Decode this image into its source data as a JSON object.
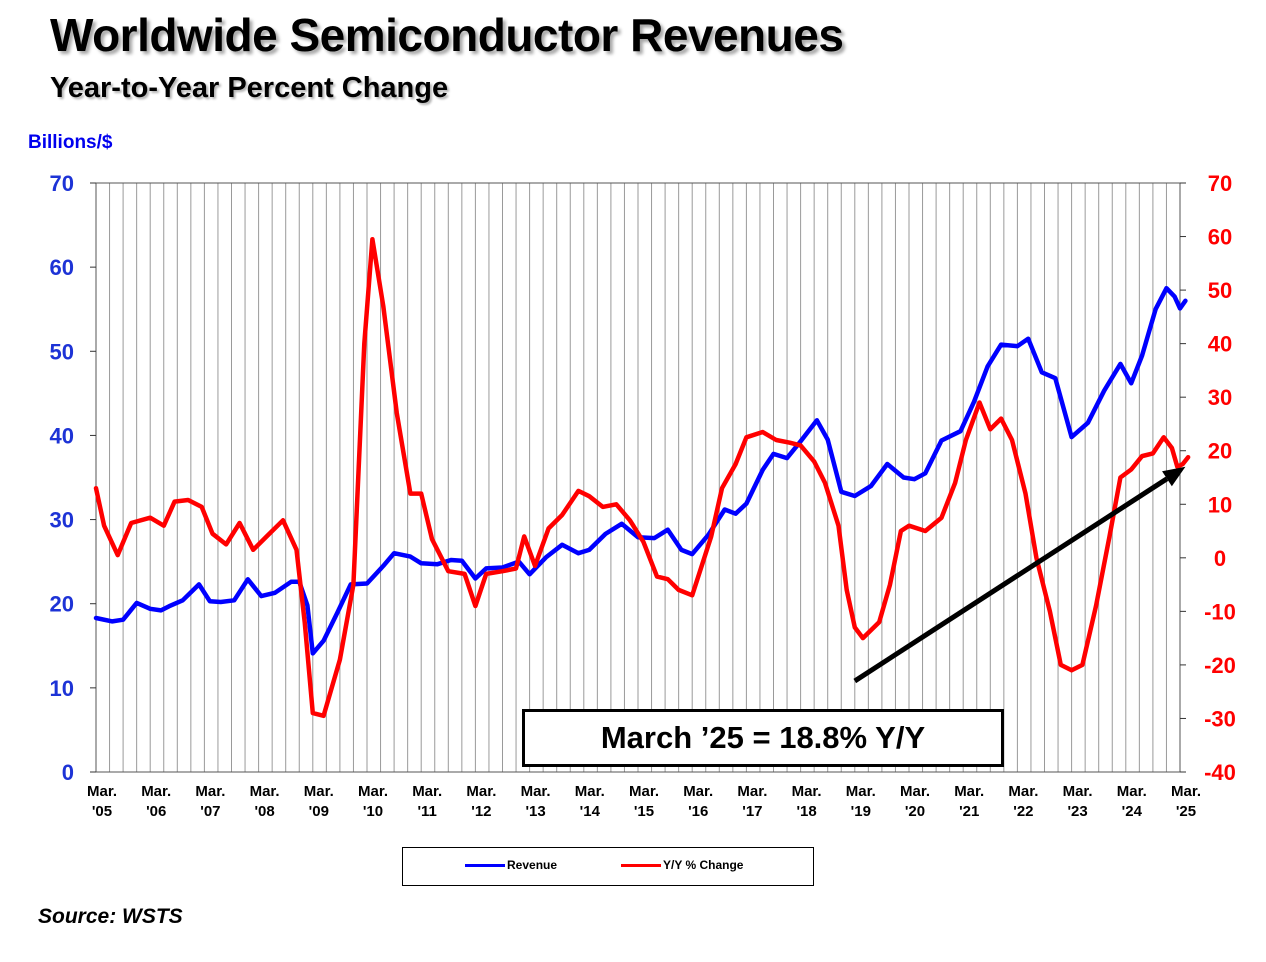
{
  "title": "Worldwide Semiconductor Revenues",
  "subtitle": "Year-to-Year Percent Change",
  "left_axis_unit": "Billions/$",
  "source": "Source: WSTS",
  "callout": "March ’25 = 18.8% Y/Y",
  "colors": {
    "revenue": "#0000ff",
    "yoy": "#ff0000",
    "arrow": "#000000"
  },
  "chart_data": {
    "type": "line",
    "x_axis": {
      "range": [
        2005.0,
        2025.0
      ],
      "tick_labels": [
        [
          "Mar.",
          "'05"
        ],
        [
          "Mar.",
          "'06"
        ],
        [
          "Mar.",
          "'07"
        ],
        [
          "Mar.",
          "'08"
        ],
        [
          "Mar.",
          "'09"
        ],
        [
          "Mar.",
          "'10"
        ],
        [
          "Mar.",
          "'11"
        ],
        [
          "Mar.",
          "'12"
        ],
        [
          "Mar.",
          "'13"
        ],
        [
          "Mar.",
          "'14"
        ],
        [
          "Mar.",
          "'15"
        ],
        [
          "Mar.",
          "'16"
        ],
        [
          "Mar.",
          "'17"
        ],
        [
          "Mar.",
          "'18"
        ],
        [
          "Mar.",
          "'19"
        ],
        [
          "Mar.",
          "'20"
        ],
        [
          "Mar.",
          "'21"
        ],
        [
          "Mar.",
          "'22"
        ],
        [
          "Mar.",
          "'23"
        ],
        [
          "Mar.",
          "'24"
        ],
        [
          "Mar.",
          "'25"
        ]
      ]
    },
    "y_left": {
      "ylim": [
        0,
        70
      ],
      "ticks": [
        0,
        10,
        20,
        30,
        40,
        50,
        60,
        70
      ]
    },
    "y_right": {
      "ylim": [
        -40,
        70
      ],
      "ticks": [
        -40,
        -30,
        -20,
        -10,
        0,
        10,
        20,
        30,
        40,
        50,
        60,
        70
      ]
    },
    "grid": "vertical",
    "legend_position": "bottom",
    "series": [
      {
        "name": "Revenue",
        "axis": "left",
        "points": [
          [
            2005.0,
            18.3
          ],
          [
            2005.3,
            17.9
          ],
          [
            2005.5,
            18.1
          ],
          [
            2005.75,
            20.1
          ],
          [
            2006.0,
            19.4
          ],
          [
            2006.2,
            19.2
          ],
          [
            2006.35,
            19.7
          ],
          [
            2006.6,
            20.4
          ],
          [
            2006.9,
            22.3
          ],
          [
            2007.1,
            20.3
          ],
          [
            2007.3,
            20.2
          ],
          [
            2007.55,
            20.4
          ],
          [
            2007.8,
            22.9
          ],
          [
            2008.05,
            20.9
          ],
          [
            2008.3,
            21.3
          ],
          [
            2008.6,
            22.6
          ],
          [
            2008.75,
            22.6
          ],
          [
            2008.9,
            19.8
          ],
          [
            2009.0,
            14.1
          ],
          [
            2009.2,
            15.6
          ],
          [
            2009.45,
            18.9
          ],
          [
            2009.7,
            22.3
          ],
          [
            2010.0,
            22.4
          ],
          [
            2010.3,
            24.5
          ],
          [
            2010.5,
            26.0
          ],
          [
            2010.8,
            25.6
          ],
          [
            2011.0,
            24.8
          ],
          [
            2011.3,
            24.7
          ],
          [
            2011.55,
            25.2
          ],
          [
            2011.75,
            25.1
          ],
          [
            2012.0,
            23.0
          ],
          [
            2012.2,
            24.2
          ],
          [
            2012.5,
            24.3
          ],
          [
            2012.8,
            25.0
          ],
          [
            2013.0,
            23.5
          ],
          [
            2013.3,
            25.5
          ],
          [
            2013.6,
            27.0
          ],
          [
            2013.9,
            26.0
          ],
          [
            2014.1,
            26.4
          ],
          [
            2014.4,
            28.3
          ],
          [
            2014.7,
            29.5
          ],
          [
            2015.0,
            27.9
          ],
          [
            2015.3,
            27.8
          ],
          [
            2015.55,
            28.8
          ],
          [
            2015.8,
            26.4
          ],
          [
            2016.0,
            25.9
          ],
          [
            2016.3,
            28.2
          ],
          [
            2016.6,
            31.2
          ],
          [
            2016.8,
            30.7
          ],
          [
            2017.0,
            31.9
          ],
          [
            2017.3,
            35.9
          ],
          [
            2017.5,
            37.8
          ],
          [
            2017.75,
            37.3
          ],
          [
            2018.0,
            39.3
          ],
          [
            2018.3,
            41.8
          ],
          [
            2018.5,
            39.5
          ],
          [
            2018.75,
            33.3
          ],
          [
            2019.0,
            32.8
          ],
          [
            2019.3,
            34.0
          ],
          [
            2019.6,
            36.6
          ],
          [
            2019.9,
            35.0
          ],
          [
            2020.1,
            34.8
          ],
          [
            2020.3,
            35.5
          ],
          [
            2020.6,
            39.4
          ],
          [
            2020.95,
            40.5
          ],
          [
            2021.2,
            44.0
          ],
          [
            2021.45,
            48.2
          ],
          [
            2021.7,
            50.8
          ],
          [
            2022.0,
            50.6
          ],
          [
            2022.2,
            51.5
          ],
          [
            2022.45,
            47.5
          ],
          [
            2022.7,
            46.8
          ],
          [
            2023.0,
            39.8
          ],
          [
            2023.3,
            41.5
          ],
          [
            2023.6,
            45.3
          ],
          [
            2023.9,
            48.5
          ],
          [
            2024.1,
            46.2
          ],
          [
            2024.3,
            49.5
          ],
          [
            2024.55,
            55.0
          ],
          [
            2024.75,
            57.5
          ],
          [
            2024.9,
            56.5
          ],
          [
            2025.0,
            55.1
          ],
          [
            2025.1,
            56.0
          ]
        ]
      },
      {
        "name": "Y/Y % Change",
        "axis": "right",
        "points": [
          [
            2005.0,
            13.0
          ],
          [
            2005.15,
            6.0
          ],
          [
            2005.4,
            0.5
          ],
          [
            2005.65,
            6.5
          ],
          [
            2006.0,
            7.5
          ],
          [
            2006.25,
            6.0
          ],
          [
            2006.45,
            10.5
          ],
          [
            2006.7,
            10.8
          ],
          [
            2006.95,
            9.5
          ],
          [
            2007.15,
            4.5
          ],
          [
            2007.4,
            2.5
          ],
          [
            2007.65,
            6.5
          ],
          [
            2007.9,
            1.5
          ],
          [
            2008.15,
            4.0
          ],
          [
            2008.45,
            7.0
          ],
          [
            2008.7,
            1.5
          ],
          [
            2008.85,
            -12.0
          ],
          [
            2009.0,
            -29.0
          ],
          [
            2009.2,
            -29.5
          ],
          [
            2009.5,
            -19.0
          ],
          [
            2009.75,
            -5.0
          ],
          [
            2009.95,
            40.0
          ],
          [
            2010.1,
            59.5
          ],
          [
            2010.3,
            47.0
          ],
          [
            2010.55,
            27.0
          ],
          [
            2010.8,
            12.0
          ],
          [
            2011.0,
            12.0
          ],
          [
            2011.2,
            3.5
          ],
          [
            2011.5,
            -2.5
          ],
          [
            2011.8,
            -3.0
          ],
          [
            2012.0,
            -9.0
          ],
          [
            2012.2,
            -3.0
          ],
          [
            2012.5,
            -2.5
          ],
          [
            2012.75,
            -2.0
          ],
          [
            2012.9,
            4.0
          ],
          [
            2013.1,
            -1.5
          ],
          [
            2013.35,
            5.5
          ],
          [
            2013.6,
            8.0
          ],
          [
            2013.9,
            12.5
          ],
          [
            2014.1,
            11.5
          ],
          [
            2014.35,
            9.5
          ],
          [
            2014.6,
            10.0
          ],
          [
            2014.85,
            7.0
          ],
          [
            2015.1,
            3.0
          ],
          [
            2015.35,
            -3.5
          ],
          [
            2015.55,
            -4.0
          ],
          [
            2015.75,
            -6.0
          ],
          [
            2016.0,
            -7.0
          ],
          [
            2016.35,
            4.0
          ],
          [
            2016.55,
            13.0
          ],
          [
            2016.8,
            17.5
          ],
          [
            2017.0,
            22.5
          ],
          [
            2017.3,
            23.5
          ],
          [
            2017.55,
            22.0
          ],
          [
            2017.8,
            21.5
          ],
          [
            2018.0,
            21.0
          ],
          [
            2018.25,
            18.0
          ],
          [
            2018.45,
            14.0
          ],
          [
            2018.7,
            6.0
          ],
          [
            2018.85,
            -6.0
          ],
          [
            2019.0,
            -13.0
          ],
          [
            2019.15,
            -15.0
          ],
          [
            2019.45,
            -12.0
          ],
          [
            2019.65,
            -5.0
          ],
          [
            2019.85,
            5.0
          ],
          [
            2020.0,
            6.0
          ],
          [
            2020.3,
            5.0
          ],
          [
            2020.6,
            7.5
          ],
          [
            2020.85,
            14.0
          ],
          [
            2021.05,
            22.0
          ],
          [
            2021.3,
            29.0
          ],
          [
            2021.5,
            24.0
          ],
          [
            2021.7,
            26.0
          ],
          [
            2021.9,
            22.0
          ],
          [
            2022.15,
            12.0
          ],
          [
            2022.35,
            0.0
          ],
          [
            2022.6,
            -10.0
          ],
          [
            2022.8,
            -20.0
          ],
          [
            2023.0,
            -21.0
          ],
          [
            2023.2,
            -20.0
          ],
          [
            2023.45,
            -9.0
          ],
          [
            2023.7,
            4.0
          ],
          [
            2023.9,
            15.0
          ],
          [
            2024.1,
            16.5
          ],
          [
            2024.3,
            19.0
          ],
          [
            2024.5,
            19.5
          ],
          [
            2024.7,
            22.5
          ],
          [
            2024.85,
            20.5
          ],
          [
            2024.95,
            17.0
          ],
          [
            2025.05,
            17.5
          ],
          [
            2025.15,
            18.8
          ]
        ]
      }
    ],
    "annotation_arrow": {
      "from": [
        2019.0,
        -23.0
      ],
      "to": [
        2025.1,
        17.0
      ],
      "axis": "right"
    }
  }
}
